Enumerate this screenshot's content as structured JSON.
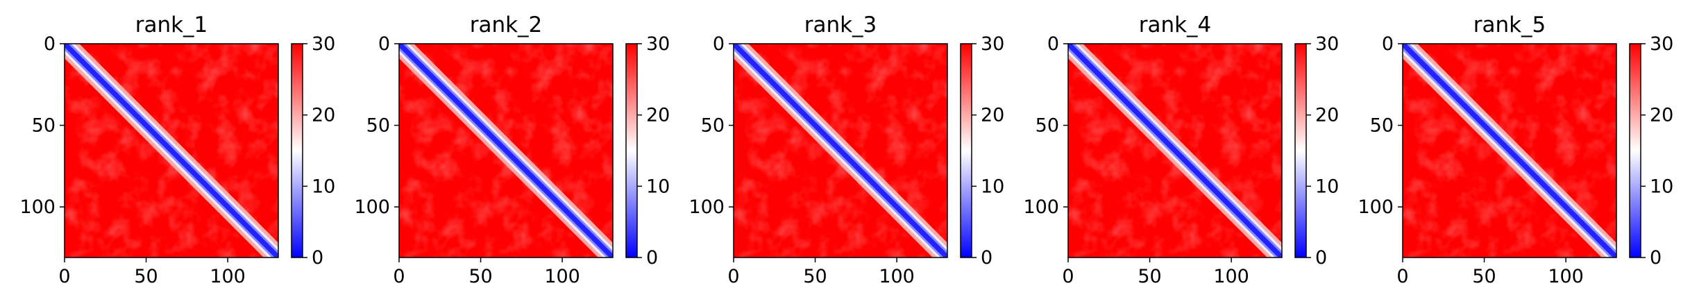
{
  "chart_data": [
    {
      "type": "heatmap",
      "title": "rank_1",
      "x_ticks": [
        0,
        50,
        100
      ],
      "y_ticks": [
        0,
        50,
        100
      ],
      "xlim": [
        0,
        131
      ],
      "ylim": [
        131,
        0
      ],
      "colorbar": {
        "range": [
          0,
          30
        ],
        "ticks": [
          0,
          10,
          20,
          30
        ],
        "colors": [
          "#0000ff",
          "#ffffff",
          "#ff0000"
        ]
      },
      "matrix_size": 131,
      "diagonal_band": "low values (blue) along diagonal, saturated high (red) elsewhere"
    },
    {
      "type": "heatmap",
      "title": "rank_2",
      "x_ticks": [
        0,
        50,
        100
      ],
      "y_ticks": [
        0,
        50,
        100
      ],
      "xlim": [
        0,
        131
      ],
      "ylim": [
        131,
        0
      ],
      "colorbar": {
        "range": [
          0,
          30
        ],
        "ticks": [
          0,
          10,
          20,
          30
        ],
        "colors": [
          "#0000ff",
          "#ffffff",
          "#ff0000"
        ]
      },
      "matrix_size": 131,
      "diagonal_band": "low values (blue) along diagonal, saturated high (red) elsewhere"
    },
    {
      "type": "heatmap",
      "title": "rank_3",
      "x_ticks": [
        0,
        50,
        100
      ],
      "y_ticks": [
        0,
        50,
        100
      ],
      "xlim": [
        0,
        131
      ],
      "ylim": [
        131,
        0
      ],
      "colorbar": {
        "range": [
          0,
          30
        ],
        "ticks": [
          0,
          10,
          20,
          30
        ],
        "colors": [
          "#0000ff",
          "#ffffff",
          "#ff0000"
        ]
      },
      "matrix_size": 131,
      "diagonal_band": "low values (blue) along diagonal, saturated high (red) elsewhere"
    },
    {
      "type": "heatmap",
      "title": "rank_4",
      "x_ticks": [
        0,
        50,
        100
      ],
      "y_ticks": [
        0,
        50,
        100
      ],
      "xlim": [
        0,
        131
      ],
      "ylim": [
        131,
        0
      ],
      "colorbar": {
        "range": [
          0,
          30
        ],
        "ticks": [
          0,
          10,
          20,
          30
        ],
        "colors": [
          "#0000ff",
          "#ffffff",
          "#ff0000"
        ]
      },
      "matrix_size": 131,
      "diagonal_band": "low values (blue) along diagonal, saturated high (red) elsewhere"
    },
    {
      "type": "heatmap",
      "title": "rank_5",
      "x_ticks": [
        0,
        50,
        100
      ],
      "y_ticks": [
        0,
        50,
        100
      ],
      "xlim": [
        0,
        131
      ],
      "ylim": [
        131,
        0
      ],
      "colorbar": {
        "range": [
          0,
          30
        ],
        "ticks": [
          0,
          10,
          20,
          30
        ],
        "colors": [
          "#0000ff",
          "#ffffff",
          "#ff0000"
        ]
      },
      "matrix_size": 131,
      "diagonal_band": "low values (blue) along diagonal, saturated high (red) elsewhere"
    }
  ]
}
